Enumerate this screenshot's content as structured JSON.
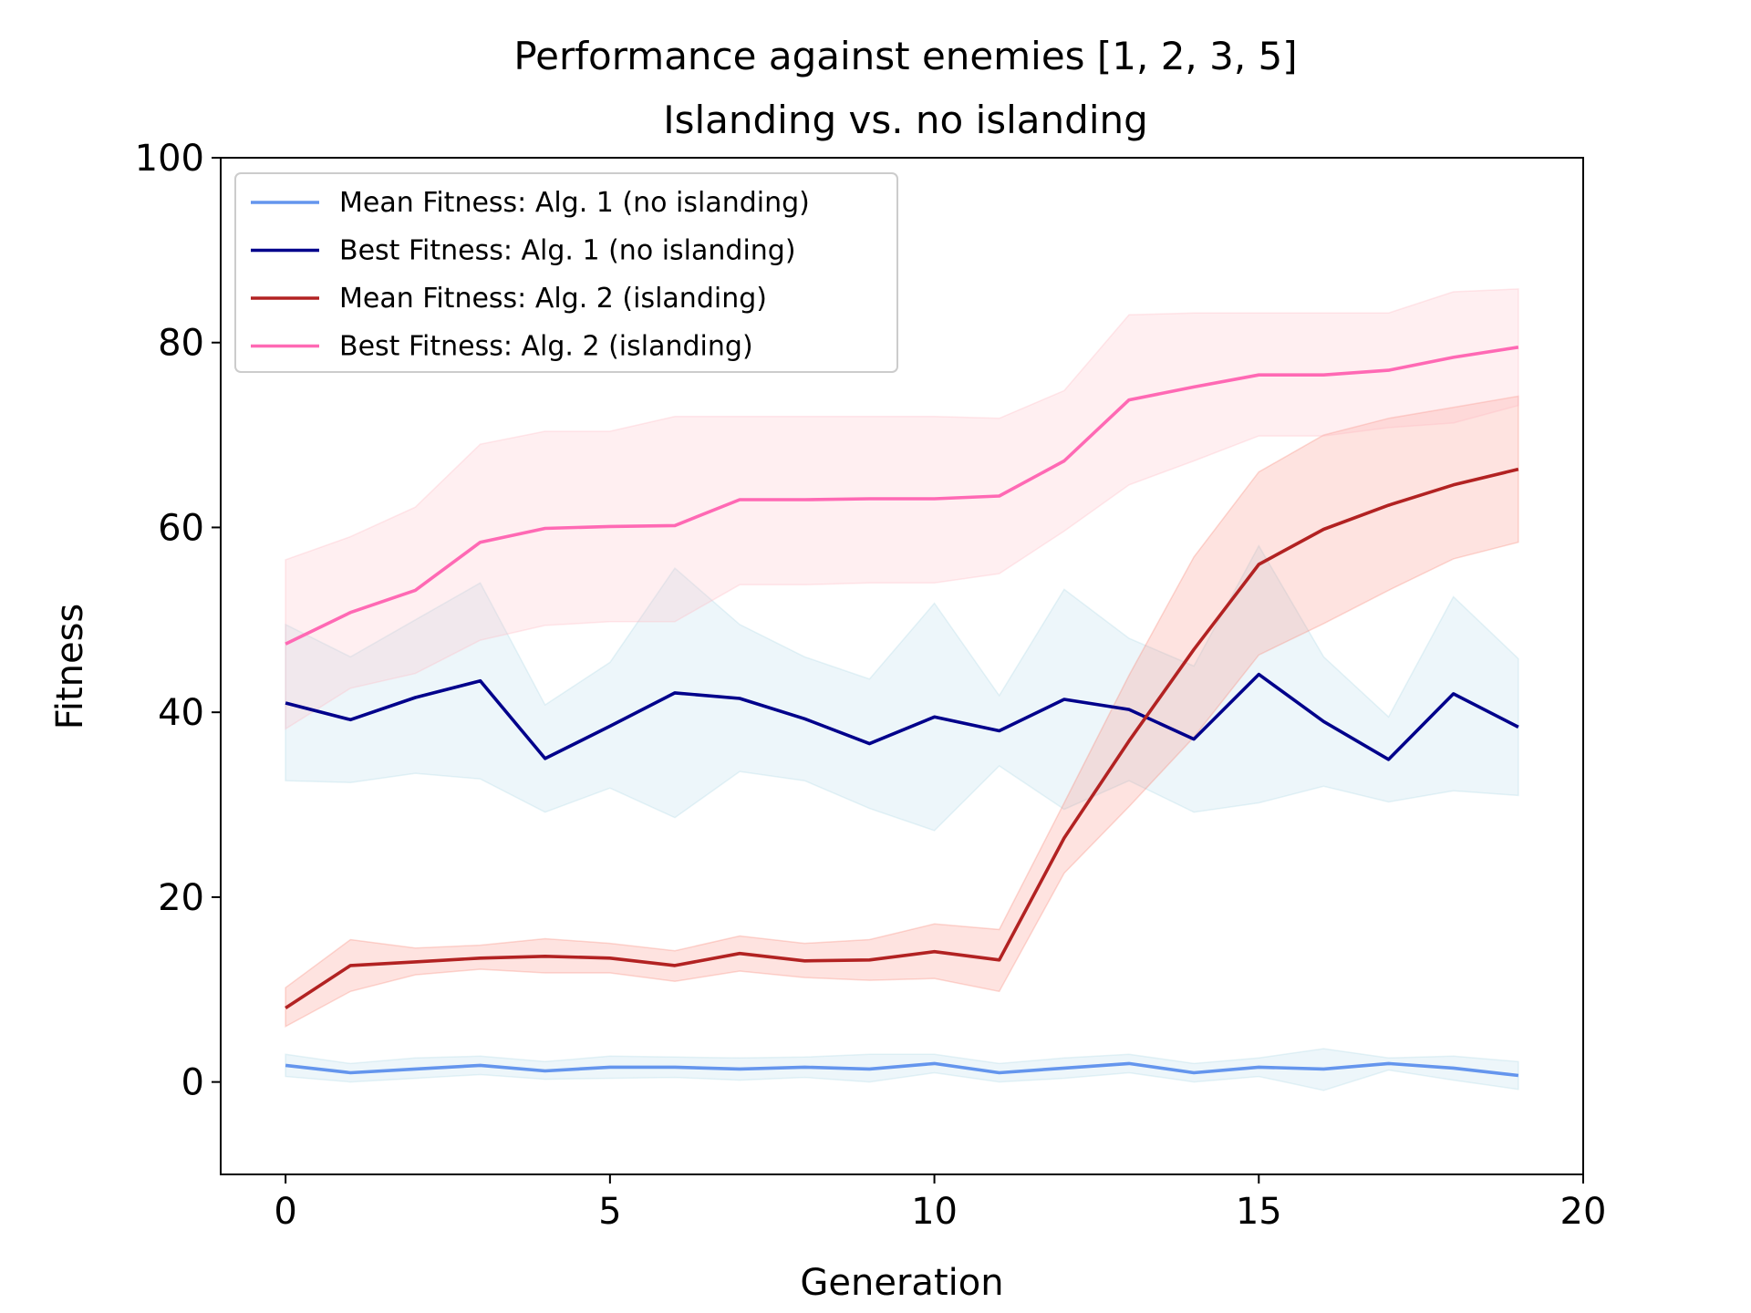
{
  "chart_data": {
    "type": "line",
    "title_line1": "Performance against enemies [1, 2, 3, 5]",
    "title_line2": "Islanding vs. no islanding",
    "xlabel": "Generation",
    "ylabel": "Fitness",
    "xlim": [
      -1,
      20
    ],
    "ylim": [
      -10,
      100
    ],
    "xticks": [
      0,
      5,
      10,
      15,
      20
    ],
    "yticks": [
      0,
      20,
      40,
      60,
      80,
      100
    ],
    "grid": false,
    "legend_position": "top-left",
    "x": [
      0,
      1,
      2,
      3,
      4,
      5,
      6,
      7,
      8,
      9,
      10,
      11,
      12,
      13,
      14,
      15,
      16,
      17,
      18,
      19
    ],
    "series": [
      {
        "name": "Mean Fitness: Alg. 1 (no islanding)",
        "color": "#6495ED",
        "band_color": "#ADD8E6",
        "values": [
          1.8,
          1.0,
          1.4,
          1.8,
          1.2,
          1.6,
          1.6,
          1.4,
          1.6,
          1.4,
          2.0,
          1.0,
          1.5,
          2.0,
          1.0,
          1.6,
          1.4,
          2.0,
          1.5,
          0.7
        ],
        "upper": [
          3.0,
          2.0,
          2.6,
          2.8,
          2.2,
          2.8,
          2.7,
          2.6,
          2.7,
          3.0,
          3.0,
          2.0,
          2.6,
          3.0,
          2.0,
          2.6,
          3.6,
          2.6,
          2.8,
          2.2
        ],
        "lower": [
          0.6,
          0.0,
          0.4,
          0.8,
          0.3,
          0.4,
          0.5,
          0.2,
          0.5,
          0.0,
          1.0,
          0.0,
          0.4,
          1.0,
          0.0,
          0.6,
          -0.9,
          1.3,
          0.2,
          -0.8
        ]
      },
      {
        "name": "Best Fitness: Alg. 1 (no islanding)",
        "color": "#00008B",
        "band_color": "#ADD8E6",
        "values": [
          41.0,
          39.2,
          41.6,
          43.4,
          35.0,
          38.5,
          42.1,
          41.5,
          39.3,
          36.6,
          39.5,
          38.0,
          41.4,
          40.3,
          37.1,
          44.1,
          39.0,
          34.9,
          42.0,
          38.4
        ],
        "upper": [
          49.5,
          46.0,
          50.0,
          54.0,
          40.8,
          45.4,
          55.6,
          49.5,
          46.0,
          43.6,
          51.8,
          41.8,
          53.3,
          48.0,
          45.0,
          58.0,
          46.0,
          39.5,
          52.5,
          45.8
        ],
        "lower": [
          32.6,
          32.4,
          33.4,
          32.8,
          29.2,
          31.8,
          28.6,
          33.6,
          32.6,
          29.6,
          27.2,
          34.2,
          29.5,
          32.6,
          29.2,
          30.2,
          32.0,
          30.3,
          31.5,
          31.0
        ]
      },
      {
        "name": "Mean Fitness: Alg. 2 (islanding)",
        "color": "#B22222",
        "band_color": "#FA8072",
        "values": [
          8.0,
          12.6,
          13.0,
          13.4,
          13.6,
          13.4,
          12.6,
          13.9,
          13.1,
          13.2,
          14.1,
          13.2,
          26.4,
          36.9,
          46.8,
          56.0,
          59.8,
          62.4,
          64.6,
          66.3
        ],
        "upper": [
          10.2,
          15.4,
          14.5,
          14.8,
          15.5,
          15.0,
          14.2,
          15.8,
          15.0,
          15.4,
          17.1,
          16.5,
          30.2,
          44.0,
          56.8,
          66.0,
          70.0,
          71.8,
          73.0,
          74.2
        ],
        "lower": [
          6.0,
          9.8,
          11.6,
          12.2,
          11.8,
          11.8,
          10.9,
          12.0,
          11.3,
          11.0,
          11.2,
          9.8,
          22.6,
          29.8,
          37.3,
          46.2,
          49.6,
          53.2,
          56.6,
          58.4
        ]
      },
      {
        "name": "Best Fitness: Alg. 2 (islanding)",
        "color": "#FF69B4",
        "band_color": "#FFB6C1",
        "values": [
          47.4,
          50.8,
          53.2,
          58.4,
          59.9,
          60.1,
          60.2,
          63.0,
          63.0,
          63.1,
          63.1,
          63.4,
          67.2,
          73.8,
          75.2,
          76.5,
          76.5,
          77.0,
          78.4,
          79.5
        ],
        "upper": [
          56.5,
          59.0,
          62.2,
          69.0,
          70.4,
          70.4,
          72.0,
          72.0,
          72.0,
          72.0,
          72.0,
          71.8,
          74.8,
          83.0,
          83.2,
          83.2,
          83.2,
          83.2,
          85.5,
          85.8
        ],
        "lower": [
          38.2,
          42.6,
          44.2,
          47.8,
          49.4,
          49.8,
          49.8,
          53.8,
          53.8,
          54.0,
          54.0,
          55.0,
          59.6,
          64.6,
          67.2,
          69.9,
          69.9,
          70.8,
          71.3,
          73.2
        ]
      }
    ]
  }
}
